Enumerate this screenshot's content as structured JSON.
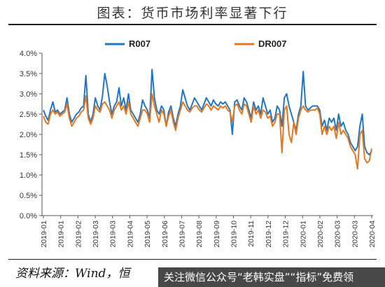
{
  "header": {
    "title": "图表：货币市场利率显著下行"
  },
  "footer": {
    "source": "资料来源：Wind，恒",
    "watermark": "关注微信公众号“老韩实盘”“指标”免费领"
  },
  "colors": {
    "R007": "#1f77c4",
    "DR007": "#e8761b"
  },
  "chart_data": {
    "type": "line",
    "title": "图表：货币市场利率显著下行",
    "xlabel": "",
    "ylabel": "",
    "ylim": [
      0.0,
      4.0
    ],
    "yticks": [
      "0.0%",
      "0.5%",
      "1.0%",
      "1.5%",
      "2.0%",
      "2.5%",
      "3.0%",
      "3.5%",
      "4.0%"
    ],
    "xticks": [
      "2019-01",
      "2019-01",
      "2019-02",
      "2019-03",
      "2019-03",
      "2019-04",
      "2019-05",
      "2019-06",
      "2019-07",
      "2019-08",
      "2019-09",
      "2019-10",
      "2019-11",
      "2019-12",
      "2019-12",
      "2020-01",
      "2020-02",
      "2020-03",
      "2020-03",
      "2020-04"
    ],
    "legend_position": "top",
    "grid": false,
    "series": [
      {
        "name": "R007",
        "values": [
          2.6,
          2.45,
          2.35,
          2.6,
          2.8,
          2.55,
          2.6,
          2.5,
          2.55,
          2.6,
          2.9,
          2.5,
          2.3,
          2.4,
          2.5,
          2.55,
          2.65,
          2.7,
          3.45,
          2.5,
          2.3,
          2.5,
          2.9,
          2.7,
          2.6,
          2.95,
          3.5,
          3.2,
          2.8,
          2.5,
          2.7,
          2.8,
          3.15,
          2.7,
          2.9,
          2.6,
          3.0,
          2.6,
          2.5,
          2.4,
          2.3,
          2.5,
          2.85,
          2.7,
          2.6,
          2.4,
          3.6,
          2.9,
          2.6,
          2.5,
          2.7,
          2.6,
          2.2,
          2.55,
          2.7,
          2.4,
          2.2,
          2.5,
          2.7,
          3.1,
          2.9,
          2.7,
          2.6,
          2.75,
          2.9,
          2.8,
          2.7,
          2.6,
          2.75,
          2.9,
          2.8,
          2.7,
          2.85,
          2.75,
          2.7,
          2.8,
          2.75,
          2.8,
          2.7,
          2.6,
          2.0,
          2.8,
          2.85,
          2.7,
          2.6,
          2.9,
          2.8,
          2.6,
          2.4,
          2.8,
          2.6,
          2.7,
          2.5,
          2.9,
          2.7,
          2.5,
          2.6,
          2.3,
          2.4,
          2.7,
          2.6,
          2.2,
          2.9,
          3.0,
          2.7,
          2.5,
          2.3,
          2.1,
          2.5,
          2.7,
          3.55,
          2.7,
          2.6,
          2.65,
          2.7,
          2.7,
          2.7,
          2.6,
          2.2,
          2.35,
          2.1,
          2.4,
          2.3,
          2.4,
          2.1,
          2.5,
          2.2,
          2.3,
          2.1,
          2.0,
          1.8,
          1.7,
          1.6,
          1.7,
          2.2,
          2.5,
          1.7,
          1.55,
          1.5,
          1.6
        ]
      },
      {
        "name": "DR007",
        "values": [
          2.45,
          2.3,
          2.25,
          2.5,
          2.6,
          2.5,
          2.55,
          2.45,
          2.5,
          2.55,
          2.75,
          2.4,
          2.2,
          2.3,
          2.4,
          2.45,
          2.55,
          2.6,
          2.95,
          2.4,
          2.25,
          2.4,
          2.7,
          2.6,
          2.55,
          2.75,
          2.8,
          2.7,
          2.6,
          2.4,
          2.6,
          2.7,
          2.8,
          2.6,
          2.7,
          2.5,
          2.8,
          2.5,
          2.4,
          2.3,
          2.2,
          2.4,
          2.6,
          2.6,
          2.5,
          2.3,
          3.0,
          2.7,
          2.5,
          2.3,
          2.6,
          2.5,
          2.2,
          2.45,
          2.6,
          2.3,
          2.1,
          2.4,
          2.6,
          2.8,
          2.7,
          2.6,
          2.55,
          2.65,
          2.7,
          2.7,
          2.6,
          2.55,
          2.65,
          2.75,
          2.7,
          2.6,
          2.7,
          2.65,
          2.6,
          2.7,
          2.65,
          2.7,
          2.6,
          2.55,
          2.3,
          2.7,
          2.75,
          2.6,
          2.5,
          2.75,
          2.7,
          2.5,
          2.3,
          2.7,
          2.5,
          2.6,
          2.4,
          2.6,
          2.55,
          2.4,
          2.45,
          2.2,
          2.3,
          2.5,
          2.5,
          1.55,
          2.6,
          2.7,
          2.0,
          1.8,
          2.3,
          2.0,
          2.4,
          2.6,
          2.7,
          2.6,
          2.55,
          2.6,
          2.6,
          2.6,
          2.65,
          2.5,
          2.0,
          2.2,
          2.0,
          2.2,
          2.1,
          2.2,
          1.9,
          2.3,
          2.0,
          2.1,
          2.0,
          1.9,
          1.7,
          1.6,
          1.5,
          1.15,
          2.0,
          2.1,
          1.4,
          1.3,
          1.35,
          1.65
        ]
      }
    ]
  }
}
